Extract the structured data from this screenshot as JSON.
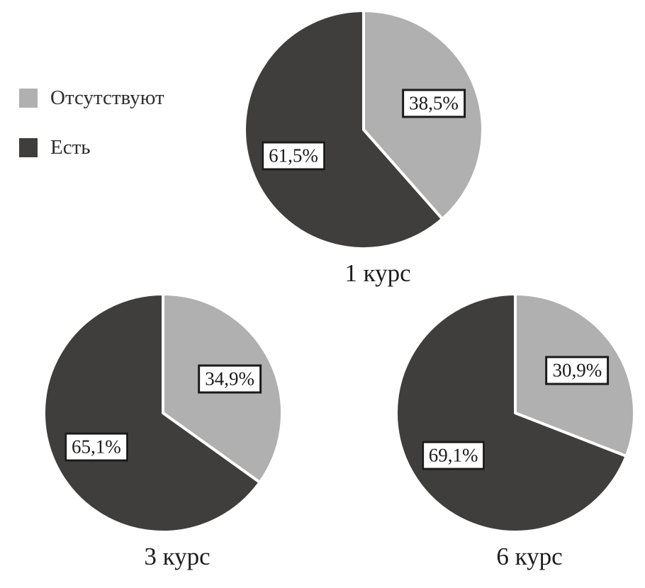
{
  "page": {
    "background": "#ffffff"
  },
  "legend": {
    "items": [
      {
        "name": "absent",
        "label": "Отсутствуют",
        "color": "#b0b0b0"
      },
      {
        "name": "present",
        "label": "Есть",
        "color": "#3f3e3d"
      }
    ]
  },
  "chart_data": [
    {
      "type": "pie",
      "title": "1 курс",
      "labels": [
        "Отсутствуют",
        "Есть"
      ],
      "values": [
        38.5,
        61.5
      ],
      "display_values": [
        "38,5%",
        "61,5%"
      ],
      "colors": [
        "#b0b0b0",
        "#3f3e3d"
      ],
      "start_angle": "top",
      "direction": "clockwise",
      "legend_position": "top-left",
      "slice_divider_color": "#ffffff"
    },
    {
      "type": "pie",
      "title": "3 курс",
      "labels": [
        "Отсутствуют",
        "Есть"
      ],
      "values": [
        34.9,
        65.1
      ],
      "display_values": [
        "34,9%",
        "65,1%"
      ],
      "colors": [
        "#b0b0b0",
        "#3f3e3d"
      ],
      "start_angle": "top",
      "direction": "clockwise",
      "slice_divider_color": "#ffffff"
    },
    {
      "type": "pie",
      "title": "6 курс",
      "labels": [
        "Отсутствуют",
        "Есть"
      ],
      "values": [
        30.9,
        69.1
      ],
      "display_values": [
        "30,9%",
        "69,1%"
      ],
      "colors": [
        "#b0b0b0",
        "#3f3e3d"
      ],
      "start_angle": "top",
      "direction": "clockwise",
      "slice_divider_color": "#ffffff"
    }
  ]
}
